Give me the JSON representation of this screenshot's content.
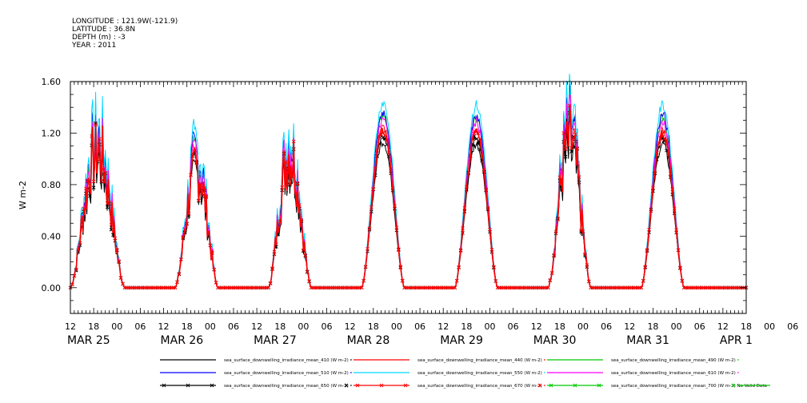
{
  "header": {
    "longitude": "LONGITUDE : 121.9W(-121.9)",
    "latitude": "LATITUDE : 36.8N",
    "depth": "DEPTH (m) : -3",
    "year": "YEAR : 2011"
  },
  "chart_data": {
    "type": "line",
    "title": "",
    "xlabel": "",
    "ylabel": "W m-2",
    "ylim": [
      -0.2,
      1.6
    ],
    "yticks": [
      "0.00",
      "0.40",
      "0.80",
      "1.20",
      "1.60"
    ],
    "xlim_hours": [
      0,
      174
    ],
    "hour_tick_labels": [
      "12",
      "18",
      "00",
      "06",
      "12",
      "18",
      "00",
      "06",
      "12",
      "18",
      "00",
      "06",
      "12",
      "18",
      "00",
      "06",
      "12",
      "18",
      "00",
      "06",
      "12",
      "18",
      "00",
      "06",
      "12",
      "18",
      "00",
      "06",
      "12",
      "18",
      "00",
      "06",
      "12"
    ],
    "date_labels": [
      "MAR 25",
      "MAR 26",
      "MAR 27",
      "MAR 28",
      "MAR 29",
      "MAR 30",
      "MAR 31",
      "APR  1"
    ],
    "date_label_hours": [
      0,
      24,
      48,
      72,
      96,
      120,
      144,
      168
    ],
    "x_axis_start": "2011-03-25 12:00",
    "days": [
      {
        "start_hour": 0,
        "end_hour": 14,
        "peak": 1.2,
        "cloudy": true
      },
      {
        "start_hour": 27,
        "end_hour": 38,
        "peak": 1.05,
        "cloudy": true
      },
      {
        "start_hour": 51,
        "end_hour": 62,
        "peak": 1.18,
        "cloudy": true
      },
      {
        "start_hour": 75,
        "end_hour": 86,
        "peak": 1.22,
        "cloudy": false
      },
      {
        "start_hour": 99,
        "end_hour": 110,
        "peak": 1.2,
        "cloudy": false
      },
      {
        "start_hour": 123,
        "end_hour": 134,
        "peak": 1.3,
        "cloudy": true
      },
      {
        "start_hour": 147,
        "end_hour": 158,
        "peak": 1.2,
        "cloudy": false
      }
    ],
    "series": [
      {
        "name": "sea_surface_downwelling_irradiance_mean_410 (W m-2)",
        "color": "#000000",
        "scale": 0.93,
        "marker": "none"
      },
      {
        "name": "sea_surface_downwelling_irradiance_mean_440 (W m-2)",
        "color": "#ff0000",
        "scale": 1.02,
        "marker": "none"
      },
      {
        "name": "sea_surface_downwelling_irradiance_mean_490 (W m-2)",
        "color": "#00c800",
        "scale": 1.1,
        "marker": "none"
      },
      {
        "name": "sea_surface_downwelling_irradiance_mean_510 (W m-2)",
        "color": "#0000ff",
        "scale": 1.12,
        "marker": "none"
      },
      {
        "name": "sea_surface_downwelling_irradiance_mean_550 (W m-2)",
        "color": "#00d8ff",
        "scale": 1.18,
        "marker": "none"
      },
      {
        "name": "sea_surface_downwelling_irradiance_mean_610 (W m-2)",
        "color": "#ff00ff",
        "scale": 1.07,
        "marker": "none"
      },
      {
        "name": "sea_surface_downwelling_irradiance_mean_650 (W m-2)",
        "color": "#000000",
        "scale": 0.97,
        "marker": "x"
      },
      {
        "name": "sea_surface_downwelling_irradiance_mean_670 (W m-2)",
        "color": "#ff0000",
        "scale": 1.0,
        "marker": "x"
      },
      {
        "name": "sea_surface_downwelling_irradiance_mean_700 (W m-2) No Valid Data",
        "color": "#00c800",
        "scale": 0,
        "marker": "x"
      }
    ],
    "grid": false,
    "legend_position": "bottom"
  }
}
